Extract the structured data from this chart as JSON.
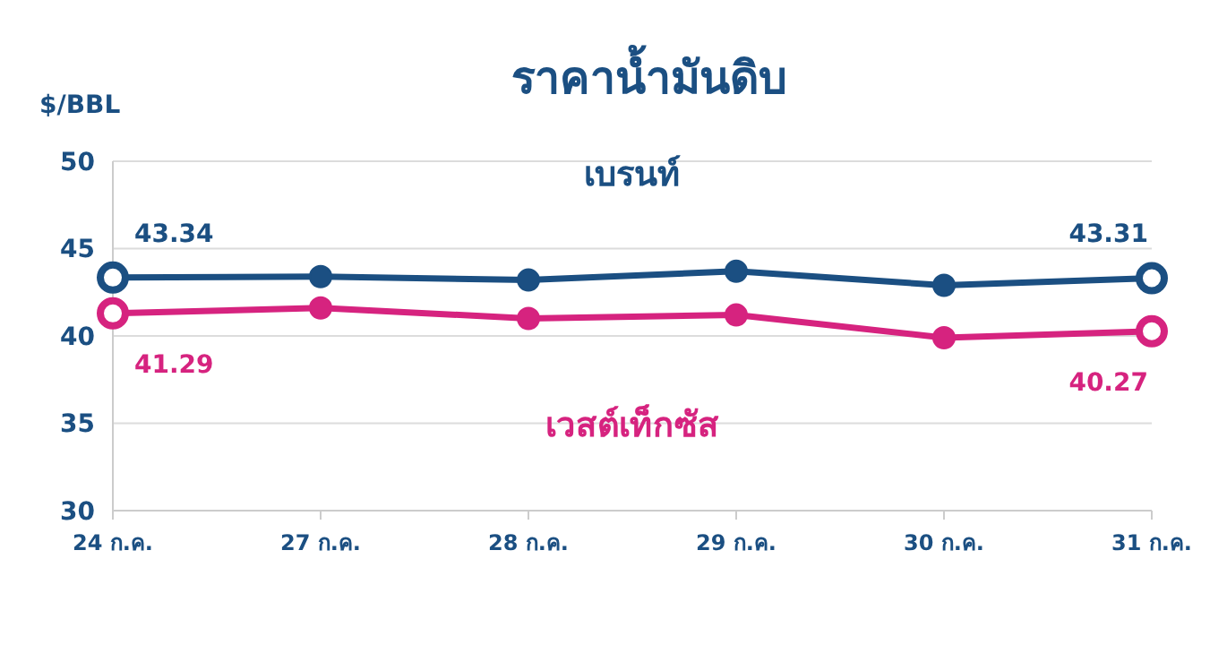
{
  "chart_data": {
    "type": "line",
    "title": "ราคาน้ำมันดิบ",
    "ylabel": "$/BBL",
    "categories": [
      "24 ก.ค.",
      "27 ก.ค.",
      "28 ก.ค.",
      "29 ก.ค.",
      "30 ก.ค.",
      "31 ก.ค."
    ],
    "series": [
      {
        "name": "เบรนท์",
        "color": "#1b4f82",
        "values": [
          43.34,
          43.4,
          43.2,
          43.7,
          42.9,
          43.31
        ],
        "value_labels": [
          "43.34",
          null,
          null,
          null,
          null,
          "43.31"
        ]
      },
      {
        "name": "เวสต์เท็กซัส",
        "color": "#d6237f",
        "values": [
          41.29,
          41.6,
          41.0,
          41.2,
          39.9,
          40.27
        ],
        "value_labels": [
          "41.29",
          null,
          null,
          null,
          null,
          "40.27"
        ]
      }
    ],
    "ylim": [
      30,
      50
    ],
    "yticks": [
      30,
      35,
      40,
      45,
      50
    ],
    "grid": "y",
    "legend": false,
    "marker": "circle",
    "line_style": "solid"
  }
}
